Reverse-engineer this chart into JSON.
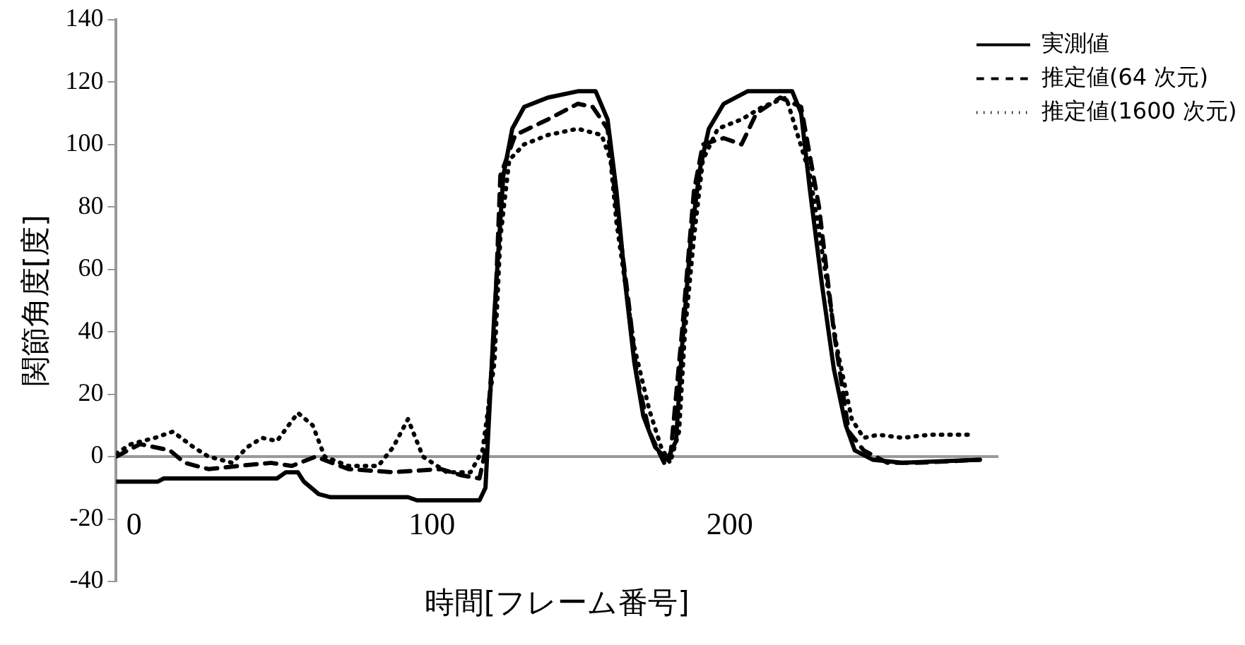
{
  "chart_data": {
    "type": "line",
    "xlabel": "時間[フレーム番号]",
    "ylabel": "関節角度[度]",
    "xlim": [
      -6,
      290
    ],
    "xticks": [
      0,
      100,
      200
    ],
    "ylim": [
      -40,
      140
    ],
    "yticks": [
      -40,
      -20,
      0,
      20,
      40,
      60,
      80,
      100,
      120,
      140
    ],
    "grid": false,
    "legend": "top right",
    "marker": "none",
    "series": [
      {
        "name": "実測値",
        "color": "#000000",
        "line_style": "solid",
        "x": [
          -6,
          8,
          10,
          48,
          51,
          55,
          57,
          62,
          66,
          92,
          95,
          116,
          118,
          121,
          124,
          127,
          131,
          139,
          149,
          155,
          159,
          162,
          165,
          168,
          171,
          175,
          179,
          182,
          184,
          187,
          190,
          193,
          198,
          206,
          221,
          224,
          227,
          231,
          235,
          239,
          242,
          248,
          258,
          284
        ],
        "values": [
          -8,
          -8,
          -7,
          -7,
          -5,
          -5,
          -8,
          -12,
          -13,
          -13,
          -14,
          -14,
          -10,
          46,
          90,
          105,
          112,
          115,
          117,
          117,
          108,
          85,
          55,
          30,
          13,
          3,
          -1,
          5,
          35,
          70,
          92,
          105,
          113,
          117,
          117,
          110,
          85,
          55,
          28,
          10,
          2,
          -1,
          -2,
          -1
        ]
      },
      {
        "name": "推定値(64 次元)",
        "color": "#000000",
        "line_style": "dashed",
        "x": [
          -6,
          2,
          12,
          17,
          25,
          35,
          46,
          53,
          61,
          72,
          87,
          103,
          110,
          116,
          118,
          121,
          123,
          128,
          139,
          149,
          154,
          159,
          162,
          166,
          169,
          173,
          178,
          180,
          184,
          188,
          191,
          198,
          204,
          209,
          217,
          224,
          230,
          235,
          240,
          245,
          253,
          263,
          284
        ],
        "values": [
          0,
          4,
          2,
          -2,
          -4,
          -3,
          -2,
          -3,
          0,
          -4,
          -5,
          -4,
          -6,
          -7,
          2,
          40,
          90,
          103,
          108,
          113,
          112,
          105,
          80,
          50,
          25,
          8,
          -2,
          -1,
          40,
          85,
          100,
          102,
          100,
          110,
          115,
          112,
          80,
          40,
          8,
          2,
          -2,
          -2,
          -1
        ]
      },
      {
        "name": "推定値(1600 次元)",
        "color": "#000000",
        "line_style": "dotted",
        "x": [
          -6,
          -1,
          7,
          13,
          20,
          25,
          33,
          38,
          43,
          48,
          55,
          60,
          64,
          72,
          82,
          87,
          92,
          97,
          105,
          113,
          117,
          121,
          123,
          126,
          131,
          139,
          149,
          157,
          160,
          162,
          165,
          168,
          173,
          177,
          180,
          183,
          185,
          188,
          191,
          196,
          204,
          211,
          219,
          227,
          232,
          236,
          241,
          245,
          250,
          258,
          267,
          281
        ],
        "values": [
          1,
          4,
          6,
          8,
          3,
          0,
          -2,
          3,
          6,
          5,
          14,
          10,
          0,
          -3,
          -3,
          3,
          12,
          0,
          -5,
          -5,
          2,
          30,
          70,
          95,
          100,
          103,
          105,
          103,
          95,
          75,
          55,
          35,
          15,
          3,
          -2,
          8,
          40,
          70,
          95,
          105,
          108,
          112,
          115,
          90,
          60,
          35,
          12,
          6,
          7,
          6,
          7,
          7
        ]
      }
    ]
  }
}
